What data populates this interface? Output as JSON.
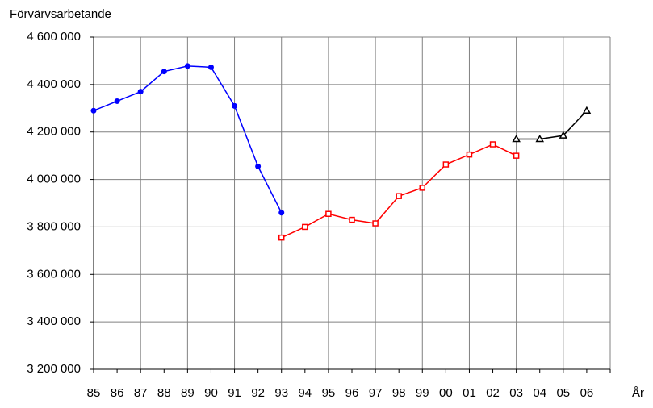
{
  "chart_data": {
    "type": "line",
    "y_label": "Förvärvsarbetande",
    "x_label": "År",
    "categories": [
      "85",
      "86",
      "87",
      "88",
      "89",
      "90",
      "91",
      "92",
      "93",
      "94",
      "95",
      "96",
      "97",
      "98",
      "99",
      "00",
      "01",
      "02",
      "03",
      "04",
      "05",
      "06",
      null
    ],
    "series": [
      {
        "color": "#0000ff",
        "marker": "circle",
        "values": [
          4290000,
          4330000,
          4370000,
          4455000,
          4478000,
          4473000,
          4310000,
          4055000,
          3860000,
          null,
          null,
          null,
          null,
          null,
          null,
          null,
          null,
          null,
          null,
          null,
          null,
          null,
          null
        ]
      },
      {
        "color": "#ff0000",
        "marker": "square",
        "values": [
          null,
          null,
          null,
          null,
          null,
          null,
          null,
          null,
          3755000,
          3800000,
          3855000,
          3830000,
          3815000,
          3930000,
          3965000,
          4063000,
          4105000,
          4148000,
          4100000,
          null,
          null,
          null,
          null
        ]
      },
      {
        "color": "#000000",
        "marker": "triangle",
        "values": [
          null,
          null,
          null,
          null,
          null,
          null,
          null,
          null,
          null,
          null,
          null,
          null,
          null,
          null,
          null,
          null,
          null,
          null,
          4170000,
          4170000,
          4185000,
          4290000,
          null
        ]
      }
    ],
    "ylim": [
      3200000,
      4600000
    ],
    "yticks": [
      {
        "value": 3200000,
        "label": "3 200 000"
      },
      {
        "value": 3400000,
        "label": "3 400 000"
      },
      {
        "value": 3600000,
        "label": "3 600 000"
      },
      {
        "value": 3800000,
        "label": "3 800 000"
      },
      {
        "value": 4000000,
        "label": "4 000 000"
      },
      {
        "value": 4200000,
        "label": "4 200 000"
      },
      {
        "value": 4400000,
        "label": "4 400 000"
      },
      {
        "value": 4600000,
        "label": "4 600 000"
      }
    ],
    "grid": true
  }
}
